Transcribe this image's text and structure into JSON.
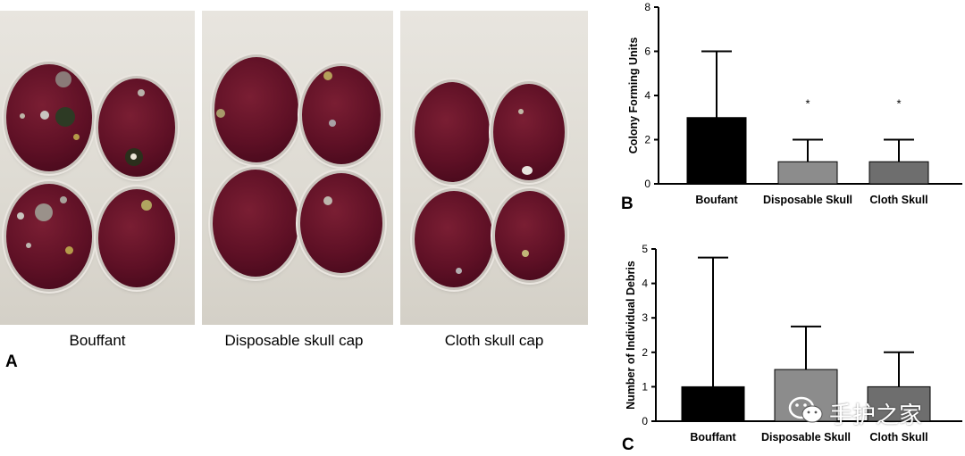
{
  "panel_a": {
    "letter": "A",
    "captions": [
      "Bouffant",
      "Disposable skull cap",
      "Cloth skull cap"
    ]
  },
  "chart_data": [
    {
      "panel": "B",
      "type": "bar",
      "title": "",
      "xlabel": "",
      "ylabel": "Colony Forming Units",
      "categories": [
        "Boufant",
        "Disposable Skull",
        "Cloth Skull"
      ],
      "values": [
        3,
        1,
        1
      ],
      "error_upper": [
        6,
        2,
        2
      ],
      "significance": [
        "",
        "*",
        "*"
      ],
      "bar_colors": [
        "#000000",
        "#8c8c8c",
        "#6e6e6e"
      ],
      "ylim": [
        0,
        8
      ],
      "yticks": [
        0,
        2,
        4,
        6,
        8
      ],
      "grid": false,
      "legend": "none"
    },
    {
      "panel": "C",
      "type": "bar",
      "title": "",
      "xlabel": "",
      "ylabel": "Number of Individual  Debris",
      "categories": [
        "Bouffant",
        "Disposable Skull",
        "Cloth Skull"
      ],
      "values": [
        1,
        1.5,
        1
      ],
      "error_upper": [
        4.75,
        2.75,
        2
      ],
      "significance": [
        "",
        "",
        ""
      ],
      "bar_colors": [
        "#000000",
        "#8c8c8c",
        "#6e6e6e"
      ],
      "ylim": [
        0,
        5
      ],
      "yticks": [
        0,
        1,
        2,
        3,
        4,
        5
      ],
      "grid": false,
      "legend": "none"
    }
  ],
  "watermark": {
    "text": "手护之家",
    "icon": "wechat-icon"
  }
}
